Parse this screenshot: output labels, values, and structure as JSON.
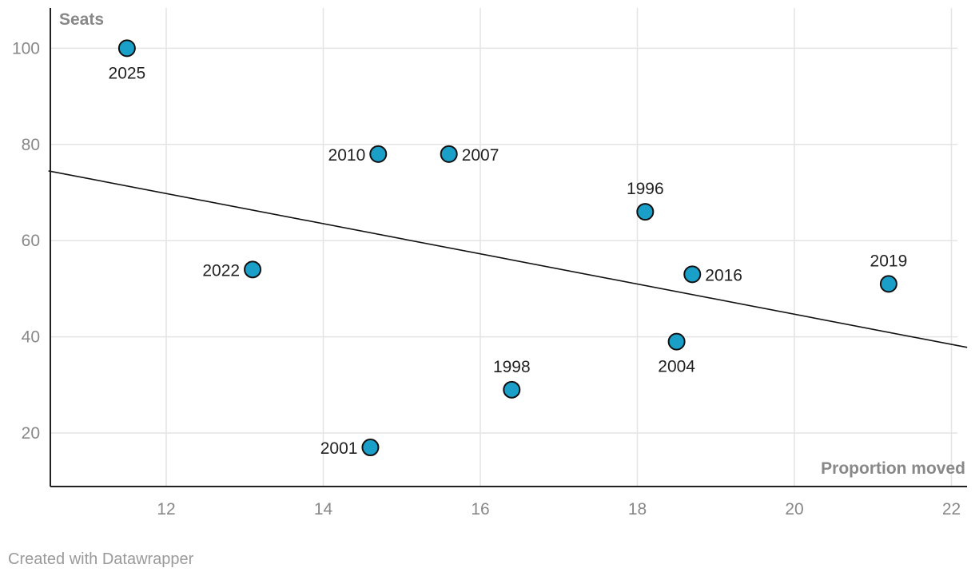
{
  "chart_data": {
    "type": "scatter",
    "xlabel": "Proportion moved",
    "ylabel": "Seats",
    "xlim": [
      10.5,
      22.2
    ],
    "ylim": [
      9,
      108
    ],
    "x_ticks": [
      12,
      14,
      16,
      18,
      20,
      22
    ],
    "y_ticks": [
      20,
      40,
      60,
      80,
      100
    ],
    "grid": true,
    "point_color": "#1a9fc9",
    "points": [
      {
        "label": "2025",
        "x": 11.5,
        "y": 100
      },
      {
        "label": "2010",
        "x": 14.7,
        "y": 78
      },
      {
        "label": "2007",
        "x": 15.6,
        "y": 78
      },
      {
        "label": "1996",
        "x": 18.1,
        "y": 66
      },
      {
        "label": "2022",
        "x": 13.1,
        "y": 54
      },
      {
        "label": "2016",
        "x": 18.7,
        "y": 53
      },
      {
        "label": "2019",
        "x": 21.2,
        "y": 51
      },
      {
        "label": "2004",
        "x": 18.5,
        "y": 39
      },
      {
        "label": "1998",
        "x": 16.4,
        "y": 29
      },
      {
        "label": "2001",
        "x": 14.6,
        "y": 17
      }
    ],
    "trendline": {
      "x1": 10.5,
      "y1": 74.5,
      "x2": 22.2,
      "y2": 37.8
    }
  },
  "footer": {
    "credit": "Created with Datawrapper"
  }
}
